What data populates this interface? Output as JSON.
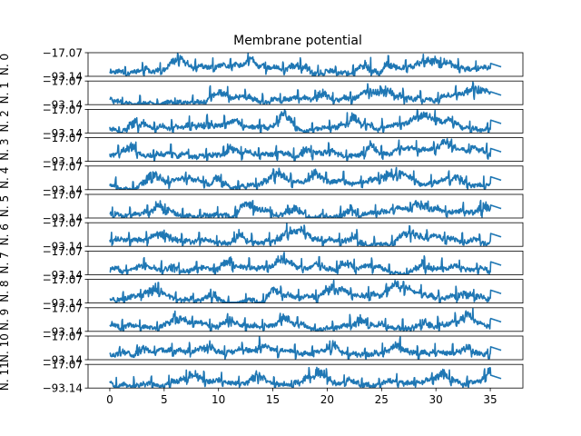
{
  "chart_data": {
    "type": "line",
    "title": "Membrane potential",
    "xlim": [
      -2,
      38
    ],
    "ylim": [
      -93.14,
      -17.07
    ],
    "y_tick_labels": [
      "-17.07",
      "-93.14"
    ],
    "x_ticks": [
      0,
      5,
      10,
      15,
      20,
      25,
      30,
      35
    ],
    "x_tick_labels": [
      "0",
      "5",
      "10",
      "15",
      "20",
      "25",
      "30",
      "35"
    ],
    "line_color": "#1f77b4",
    "panels": [
      {
        "label": "N. 0",
        "seed": 11,
        "bursts": [
          [
            6.5,
            1.2
          ],
          [
            13,
            0.6
          ],
          [
            17.8,
            1.8
          ],
          [
            23.5,
            1.2
          ],
          [
            25.5,
            0.6
          ],
          [
            30,
            2.2
          ]
        ]
      },
      {
        "label": "N. 1",
        "seed": 23,
        "bursts": [
          [
            10,
            1.5
          ],
          [
            19.5,
            1.0
          ],
          [
            25,
            3.0
          ],
          [
            33.5,
            1.5
          ]
        ]
      },
      {
        "label": "N. 2",
        "seed": 37,
        "bursts": [
          [
            2.5,
            1.5
          ],
          [
            9,
            1.0
          ],
          [
            16,
            1.2
          ],
          [
            22.5,
            2.0
          ],
          [
            28.8,
            1.8
          ]
        ]
      },
      {
        "label": "N. 3",
        "seed": 41,
        "bursts": [
          [
            2,
            1.0
          ],
          [
            11,
            1.0
          ],
          [
            18,
            1.2
          ],
          [
            24,
            1.0
          ],
          [
            31,
            1.0
          ]
        ]
      },
      {
        "label": "N. 4",
        "seed": 53,
        "bursts": [
          [
            4,
            1.5
          ],
          [
            10,
            1.0
          ],
          [
            15.5,
            1.8
          ],
          [
            19,
            1.2
          ],
          [
            26,
            2.5
          ],
          [
            32,
            1.2
          ]
        ]
      },
      {
        "label": "N. 5",
        "seed": 67,
        "bursts": [
          [
            4.5,
            1.5
          ],
          [
            12.5,
            1.2
          ],
          [
            17,
            1.5
          ],
          [
            22,
            1.0
          ],
          [
            28.5,
            2.0
          ],
          [
            34.5,
            1.0
          ]
        ]
      },
      {
        "label": "N. 6",
        "seed": 71,
        "bursts": [
          [
            5,
            1.5
          ],
          [
            12,
            1.0
          ],
          [
            16.5,
            2.0
          ],
          [
            22.5,
            1.2
          ],
          [
            27.5,
            1.8
          ]
        ]
      },
      {
        "label": "N. 7",
        "seed": 83,
        "bursts": [
          [
            5.5,
            1.2
          ],
          [
            11,
            1.0
          ],
          [
            16,
            1.2
          ],
          [
            21.5,
            1.0
          ],
          [
            28.8,
            1.5
          ]
        ]
      },
      {
        "label": "N. 8",
        "seed": 97,
        "bursts": [
          [
            4,
            1.5
          ],
          [
            9.5,
            1.2
          ],
          [
            15,
            1.0
          ],
          [
            20.5,
            1.5
          ],
          [
            26.5,
            1.5
          ],
          [
            32.8,
            1.8
          ]
        ]
      },
      {
        "label": "N. 9",
        "seed": 101,
        "bursts": [
          [
            6,
            1.5
          ],
          [
            11,
            1.0
          ],
          [
            16,
            1.0
          ],
          [
            23,
            1.5
          ],
          [
            29,
            1.8
          ],
          [
            33,
            1.2
          ]
        ]
      },
      {
        "label": "N. 10",
        "seed": 113,
        "bursts": [
          [
            3,
            1.0
          ],
          [
            9,
            1.5
          ],
          [
            14,
            1.0
          ],
          [
            20.5,
            2.0
          ],
          [
            26.5,
            1.8
          ],
          [
            33,
            1.2
          ]
        ]
      },
      {
        "label": "N. 11",
        "seed": 127,
        "bursts": [
          [
            7.5,
            1.5
          ],
          [
            13.5,
            1.0
          ],
          [
            19,
            2.5
          ],
          [
            30.5,
            1.5
          ],
          [
            35,
            0.8
          ]
        ]
      }
    ]
  }
}
